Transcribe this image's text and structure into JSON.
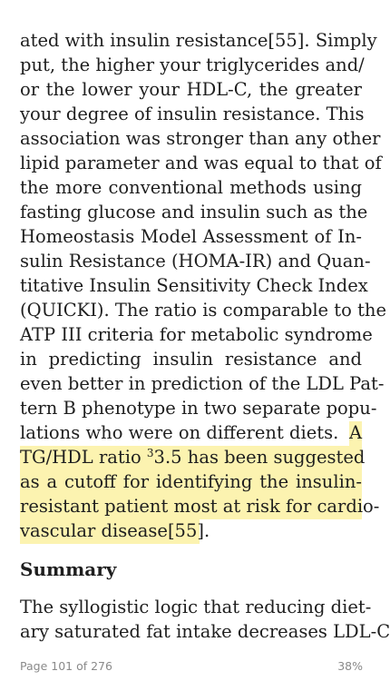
{
  "body_lines": [
    "ated with insulin resistance[55]. Simply",
    "put, the higher your triglycerides and/",
    "or the lower your HDL-C, the greater",
    "your degree of insulin resistance. This",
    "association was stronger than any other",
    "lipid parameter and was equal to that of",
    "the more conventional methods using",
    "fasting glucose and insulin such as the",
    "Homeostasis Model Assessment of In-",
    "sulin Resistance (HOMA-IR) and Quan-",
    "titative Insulin Sensitivity Check Index",
    "(QUICKI). The ratio is comparable to the",
    "ATP III criteria for metabolic syndrome",
    "in predicting insulin resistance and",
    "even better in prediction of the LDL Pat-",
    "tern B phenotype in two separate popu-",
    "lations who were on different diets."
  ],
  "highlight": {
    "line1_start": "A",
    "line2_pre": "TG/HDL ratio",
    "line2_sup": "3",
    "line2_post": "3.5 has been suggested",
    "line3": "as a cutoff for identifying the insulin-",
    "line4": "resistant patient most at risk for cardio-",
    "line5": "vascular disease[55]."
  },
  "heading": "Summary",
  "next_lines": [
    "The syllogistic logic that reducing diet-",
    "ary saturated fat intake decreases LDL-C"
  ],
  "footer": {
    "page_label": "Page 101 of 276",
    "progress": "38%"
  },
  "colors": {
    "highlight": "#fcf3b0",
    "text": "#1e1e1e",
    "footer": "#8a8a8a"
  }
}
